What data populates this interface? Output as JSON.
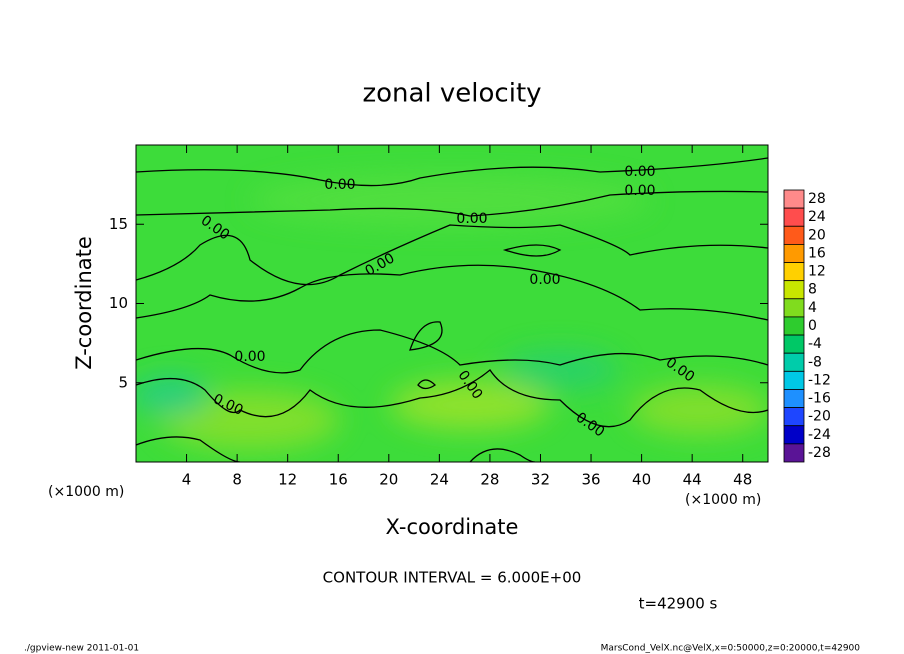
{
  "chart_data": {
    "type": "contour",
    "title": "zonal velocity",
    "xlabel": "X-coordinate",
    "ylabel": "Z-coordinate",
    "x_unit_label": "(×1000 m)",
    "xlim": [
      0,
      50
    ],
    "xticks": [
      4,
      8,
      12,
      16,
      20,
      24,
      28,
      32,
      36,
      40,
      44,
      48
    ],
    "ylim": [
      0,
      20
    ],
    "yticks": [
      5,
      10,
      15
    ],
    "contour_labels": [
      "0.00",
      "0.00",
      "0.00",
      "0.00",
      "0.00",
      "0.00",
      "0.00",
      "0.00",
      "0.00",
      "0.00",
      "0.00",
      "0.00"
    ],
    "colorbar": {
      "lim": [
        -30,
        30
      ],
      "ticks": [
        28,
        24,
        20,
        16,
        12,
        8,
        4,
        0,
        -4,
        -8,
        -12,
        -16,
        -20,
        -24,
        -28
      ],
      "colors": [
        "#ff8a8a",
        "#ff4d4d",
        "#ff5a1a",
        "#ff9a00",
        "#ffd000",
        "#c8e600",
        "#80dc1e",
        "#2ecc2e",
        "#00c866",
        "#00ccaa",
        "#00c8e6",
        "#1e90ff",
        "#1e46ff",
        "#0000c8",
        "#5a1496"
      ]
    },
    "contour_interval": "CONTOUR INTERVAL = 6.000E+00",
    "time_label": "t=42900 s",
    "footer_left": "./gpview-new  2011-01-01",
    "footer_right": "MarsCond_VelX.nc@VelX,x=0:50000,z=0:20000,t=42900"
  }
}
